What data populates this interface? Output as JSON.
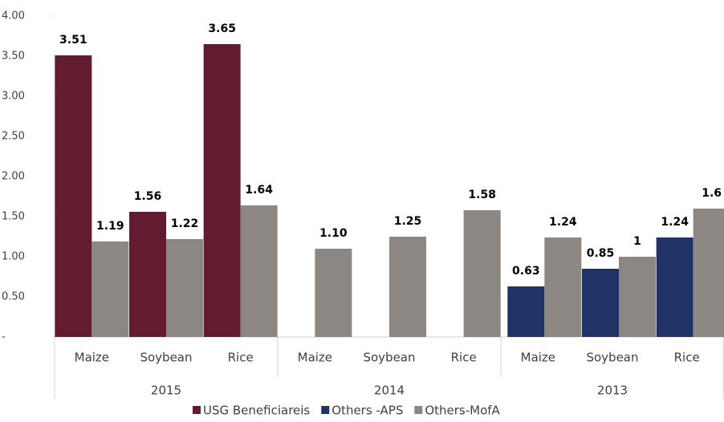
{
  "chart_data": {
    "type": "bar",
    "groups": [
      "2015",
      "2014",
      "2013"
    ],
    "categories": [
      "Maize",
      "Soybean",
      "Rice",
      "Maize",
      "Soybean",
      "Rice",
      "Maize",
      "Soybean",
      "Rice"
    ],
    "series": [
      {
        "name": "USG Beneficiareis",
        "color": "#621b2f",
        "values": [
          3.51,
          1.56,
          3.65,
          null,
          null,
          null,
          null,
          null,
          null
        ]
      },
      {
        "name": "Others -APS",
        "color": "#1f3366",
        "values": [
          null,
          null,
          null,
          null,
          null,
          null,
          0.63,
          0.85,
          1.24
        ]
      },
      {
        "name": "Others-MofA",
        "color": "#8c8782",
        "values": [
          1.19,
          1.22,
          1.64,
          1.1,
          1.25,
          1.58,
          1.24,
          1,
          1.6
        ],
        "value_labels": [
          "1.19",
          "1.22",
          "1.64",
          "1.10",
          "1.25",
          "1.58",
          "1.24",
          "1",
          "1.6"
        ]
      }
    ],
    "ylim": [
      0,
      4
    ],
    "yticks": [
      {
        "value": 0,
        "label": "-"
      },
      {
        "value": 0.5,
        "label": "0.50"
      },
      {
        "value": 1,
        "label": "1.00"
      },
      {
        "value": 1.5,
        "label": "1.50"
      },
      {
        "value": 2,
        "label": "2.00"
      },
      {
        "value": 2.5,
        "label": "2.50"
      },
      {
        "value": 3,
        "label": "3.00"
      },
      {
        "value": 3.5,
        "label": "3.50"
      },
      {
        "value": 4,
        "label": "4.00"
      }
    ],
    "grid": false,
    "legend": "bottom"
  }
}
